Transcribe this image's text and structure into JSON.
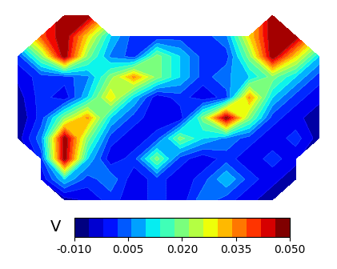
{
  "chart_data": {
    "type": "contour",
    "tick_labels": false,
    "color": "jet",
    "colorbar_label": "V",
    "colorbar_range": [
      -0.01,
      0.05
    ],
    "colorbar_ticks": [
      {
        "value": -0.01,
        "label": "-0.010"
      },
      {
        "value": 0.005,
        "label": "0.005"
      },
      {
        "value": 0.02,
        "label": "0.020"
      },
      {
        "value": 0.035,
        "label": "0.035"
      },
      {
        "value": 0.05,
        "label": "0.050"
      }
    ],
    "cells": [
      [
        null,
        null,
        0.05,
        0.05,
        null,
        null,
        null,
        null,
        null,
        null,
        null,
        0.05,
        null,
        null
      ],
      [
        null,
        0.04,
        0.05,
        0.03,
        0.01,
        0.0,
        -0.002,
        0.0,
        0.0,
        0.005,
        0.03,
        0.05,
        0.05,
        null
      ],
      [
        0.0,
        0.02,
        0.05,
        0.02,
        0.005,
        0.0,
        0.02,
        0.01,
        0.0,
        0.0,
        0.02,
        0.05,
        0.03,
        0.01
      ],
      [
        -0.005,
        0.0,
        0.0,
        0.005,
        0.02,
        0.035,
        0.02,
        0.01,
        0.0,
        0.005,
        0.01,
        0.02,
        0.01,
        0.0
      ],
      [
        -0.008,
        0.0,
        -0.005,
        0.01,
        0.03,
        0.01,
        -0.005,
        0.0,
        -0.005,
        0.0,
        0.035,
        0.01,
        0.0,
        -0.005
      ],
      [
        -0.01,
        0.0,
        0.02,
        0.035,
        0.01,
        0.0,
        -0.005,
        -0.005,
        0.02,
        0.05,
        0.02,
        0.0,
        -0.005,
        -0.008
      ],
      [
        -0.008,
        0.005,
        0.05,
        0.02,
        0.0,
        -0.005,
        0.0,
        0.02,
        0.01,
        0.005,
        0.0,
        -0.005,
        0.0,
        -0.008
      ],
      [
        null,
        0.0,
        0.05,
        0.01,
        -0.005,
        0.0,
        0.02,
        0.0,
        -0.005,
        0.0,
        -0.005,
        0.0,
        -0.005,
        null
      ],
      [
        null,
        -0.005,
        0.01,
        0.0,
        0.005,
        -0.005,
        0.0,
        -0.005,
        0.0,
        0.01,
        0.0,
        -0.005,
        -0.008,
        null
      ],
      [
        null,
        null,
        -0.008,
        -0.005,
        0.0,
        -0.005,
        0.0,
        -0.005,
        0.005,
        0.0,
        -0.005,
        -0.008,
        null,
        null
      ]
    ]
  }
}
